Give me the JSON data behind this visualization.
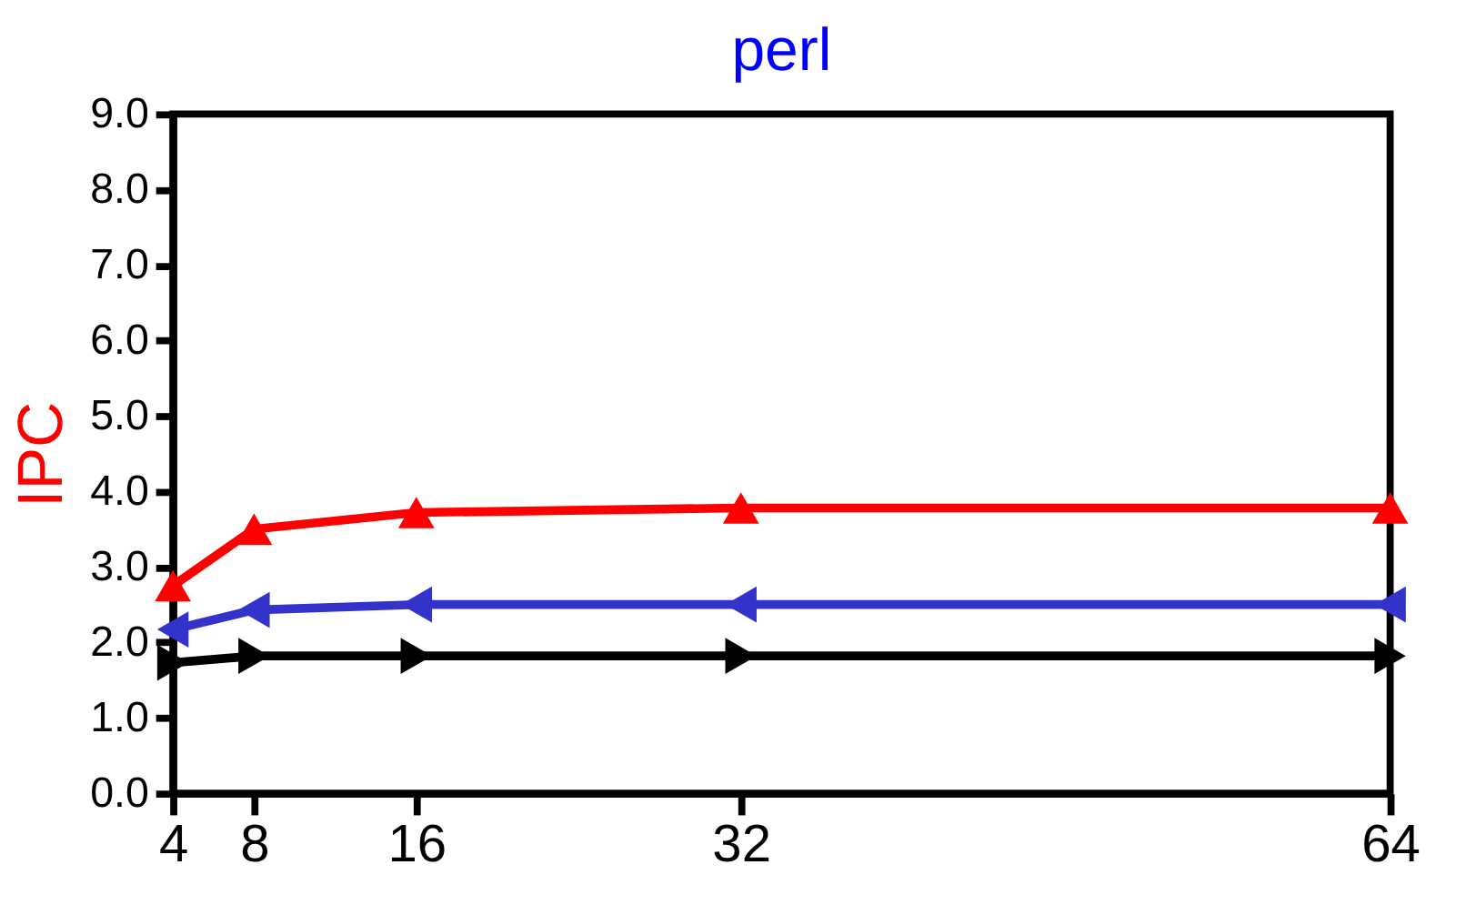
{
  "chart_data": {
    "type": "line",
    "title": "perl",
    "ylabel": "IPC",
    "x": [
      4,
      8,
      16,
      32,
      64
    ],
    "xlim": [
      4,
      64
    ],
    "xticks": [
      4,
      8,
      16,
      32,
      64
    ],
    "ylim": [
      0,
      9
    ],
    "yticks": [
      {
        "value": 0,
        "label": "0.0"
      },
      {
        "value": 1,
        "label": "1.0"
      },
      {
        "value": 2,
        "label": "2.0"
      },
      {
        "value": 3,
        "label": "3.0"
      },
      {
        "value": 4,
        "label": "4.0"
      },
      {
        "value": 5,
        "label": "5.0"
      },
      {
        "value": 6,
        "label": "6.0"
      },
      {
        "value": 7,
        "label": "7.0"
      },
      {
        "value": 8,
        "label": "8.0"
      },
      {
        "value": 9,
        "label": "9.0"
      }
    ],
    "grid": false,
    "line_style": "solid",
    "series": [
      {
        "color": "#ff0000",
        "marker": "triangle-up",
        "values": [
          2.75,
          3.5,
          3.72,
          3.78,
          3.78
        ]
      },
      {
        "color": "#3333cc",
        "marker": "triangle-left",
        "values": [
          2.17,
          2.43,
          2.5,
          2.5,
          2.5
        ]
      },
      {
        "color": "#000000",
        "marker": "triangle-right",
        "values": [
          1.73,
          1.82,
          1.82,
          1.82,
          1.82
        ]
      }
    ]
  }
}
